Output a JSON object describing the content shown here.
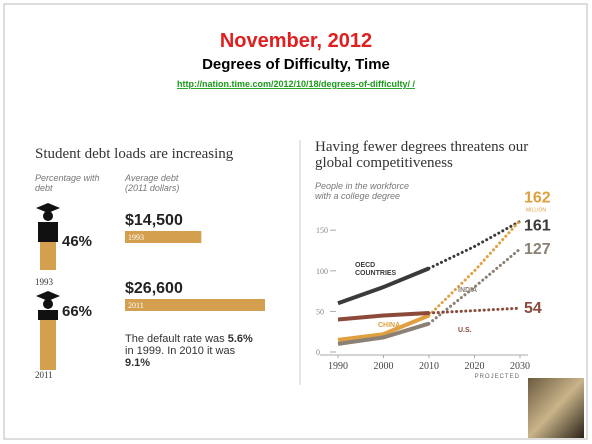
{
  "header": {
    "title": "November, 2012",
    "subtitle": "Degrees of Difficulty, Time",
    "link": "http://nation.time.com/2012/10/18/degrees-of-difficulty/ /"
  },
  "left_panel": {
    "title": "Student debt loads are increasing",
    "pct_heading": "Percentage with debt",
    "debt_heading": "Average debt (2011 dollars)",
    "bar_color": "#d4a050",
    "rows": [
      {
        "year": "1993",
        "percentage": "46%",
        "debt": {
          "value": 14500,
          "label": "$14,500"
        }
      },
      {
        "year": "2011",
        "percentage": "66%",
        "debt": {
          "value": 26600,
          "label": "$26,600"
        }
      }
    ],
    "note_parts": [
      "The default rate was ",
      "5.6%",
      " in 1999. In 2010 it was ",
      "9.1%"
    ]
  },
  "chart_data": {
    "type": "line",
    "title": "Having fewer degrees threatens our global competitiveness",
    "subtitle": "People in the workforce with a college degree",
    "x": [
      1990,
      2000,
      2010,
      2020,
      2030
    ],
    "xlim": [
      1990,
      2030
    ],
    "xticks": [
      1990,
      2000,
      2010,
      2020,
      2030
    ],
    "ylim": [
      0,
      170
    ],
    "yticks": [
      0,
      50,
      100,
      150
    ],
    "x_note": "PROJECTED",
    "projection_start_x": 2010,
    "end_note": "MILLION",
    "series": [
      {
        "name": "OECD COUNTRIES",
        "color": "#3a3a3a",
        "values": [
          60,
          80,
          103,
          130,
          161
        ]
      },
      {
        "name": "CHINA",
        "color": "#e0a040",
        "values": [
          15,
          22,
          45,
          100,
          162
        ]
      },
      {
        "name": "INDIA",
        "color": "#8a8074",
        "values": [
          10,
          18,
          35,
          80,
          127
        ]
      },
      {
        "name": "U.S.",
        "color": "#8b4a3a",
        "values": [
          40,
          45,
          48,
          51,
          54
        ]
      }
    ]
  }
}
